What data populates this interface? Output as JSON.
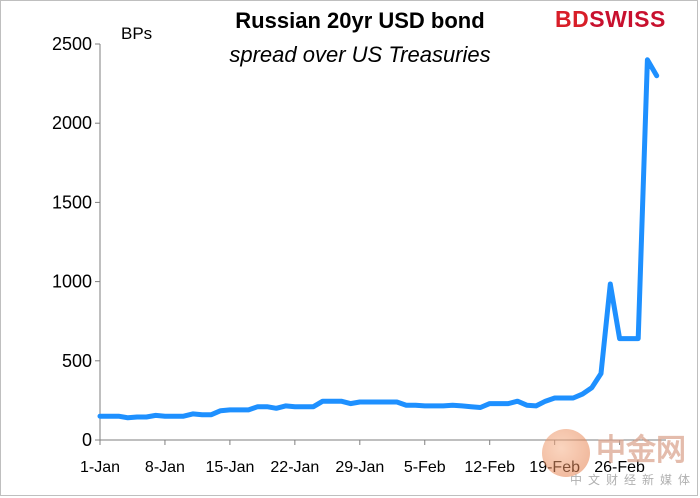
{
  "chart_data": {
    "type": "line",
    "title": "Russian 20yr USD bond",
    "subtitle": "spread over US Treasuries",
    "ylabel": "BPs",
    "xlabel": "",
    "ylim": [
      0,
      2500
    ],
    "yticks": [
      0,
      500,
      1000,
      1500,
      2000,
      2500
    ],
    "x_tick_labels": [
      "1-Jan",
      "8-Jan",
      "15-Jan",
      "22-Jan",
      "29-Jan",
      "5-Feb",
      "12-Feb",
      "19-Feb",
      "26-Feb"
    ],
    "grid": false,
    "line_color": "#1e90ff",
    "series": [
      {
        "x": [
          "1-Jan",
          "3-Jan",
          "4-Jan",
          "5-Jan",
          "6-Jan",
          "7-Jan",
          "8-Jan",
          "9-Jan",
          "10-Jan",
          "11-Jan",
          "12-Jan",
          "13-Jan",
          "14-Jan",
          "15-Jan",
          "16-Jan",
          "17-Jan",
          "18-Jan",
          "19-Jan",
          "20-Jan",
          "21-Jan",
          "22-Jan",
          "23-Jan",
          "24-Jan",
          "25-Jan",
          "26-Jan",
          "27-Jan",
          "28-Jan",
          "29-Jan",
          "30-Jan",
          "31-Jan",
          "1-Feb",
          "2-Feb",
          "3-Feb",
          "4-Feb",
          "5-Feb",
          "6-Feb",
          "7-Feb",
          "8-Feb",
          "9-Feb",
          "10-Feb",
          "11-Feb",
          "12-Feb",
          "13-Feb",
          "14-Feb",
          "15-Feb",
          "16-Feb",
          "17-Feb",
          "18-Feb",
          "19-Feb",
          "20-Feb",
          "21-Feb",
          "22-Feb",
          "23-Feb",
          "24-Feb",
          "25-Feb",
          "26-Feb",
          "27-Feb",
          "28-Feb",
          "1-Mar",
          "2-Mar"
        ],
        "values": [
          150,
          150,
          140,
          145,
          145,
          155,
          150,
          150,
          150,
          165,
          160,
          160,
          185,
          190,
          190,
          190,
          210,
          210,
          200,
          215,
          210,
          210,
          210,
          245,
          245,
          245,
          230,
          240,
          240,
          240,
          240,
          240,
          220,
          220,
          215,
          215,
          215,
          220,
          215,
          210,
          205,
          230,
          230,
          230,
          245,
          220,
          215,
          245,
          265,
          265,
          265,
          290,
          330,
          420,
          985,
          640,
          640,
          640,
          2400,
          2300
        ]
      }
    ]
  },
  "brand": {
    "part1": "BD",
    "part2": "SWISS"
  },
  "watermark": {
    "cn": "中金网",
    "sub": "中文财经新媒体"
  }
}
